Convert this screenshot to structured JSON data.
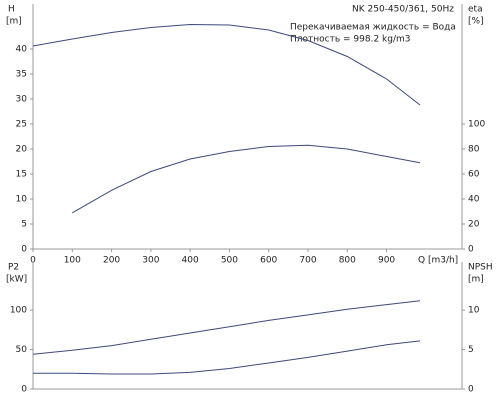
{
  "chart_data": [
    {
      "type": "line",
      "title": "NK 250-450/361, 50Hz",
      "annotations": [
        "Перекачиваемая жидкость = Вода",
        "Плотность = 998.2 kg/m3"
      ],
      "xlabel": "Q [m3/h]",
      "ylabel": "H",
      "yunit": "[m]",
      "y2label": "eta",
      "y2unit": "[%]",
      "x": [
        0,
        100,
        200,
        300,
        400,
        500,
        600,
        700,
        800,
        900,
        985
      ],
      "xlim": [
        0,
        1092
      ],
      "xticks": [
        0,
        100,
        200,
        300,
        400,
        500,
        600,
        700,
        800,
        900
      ],
      "ylim": [
        0,
        49
      ],
      "yticks": [
        0,
        5,
        10,
        15,
        20,
        25,
        30,
        35,
        40
      ],
      "y2lim": [
        0,
        196
      ],
      "y2ticks": [
        0,
        20,
        40,
        60,
        80,
        100
      ],
      "series": [
        {
          "name": "H",
          "color": "#3d4a7c",
          "values": [
            40.6,
            42,
            43.3,
            44.3,
            44.9,
            44.8,
            43.8,
            41.7,
            38.5,
            34,
            28.8
          ]
        },
        {
          "name": "eta",
          "color": "#3d4a7c",
          "axis": "y2",
          "values": [
            null,
            29,
            47,
            62,
            72,
            78,
            82,
            83,
            80,
            74,
            69
          ]
        }
      ]
    },
    {
      "type": "line",
      "ylabel": "P2",
      "yunit": "[kW]",
      "y2label": "NPSH",
      "y2unit": "[m]",
      "x": [
        0,
        100,
        200,
        300,
        400,
        500,
        600,
        700,
        800,
        900,
        985
      ],
      "xlim": [
        0,
        1092
      ],
      "ylim": [
        0,
        161
      ],
      "yticks": [
        0,
        50,
        100
      ],
      "y2lim": [
        0,
        16.1
      ],
      "y2ticks": [
        0,
        5,
        10
      ],
      "series": [
        {
          "name": "P2",
          "color": "#3d4a7c",
          "values": [
            44,
            49,
            55,
            63,
            71,
            79,
            87,
            94,
            101,
            107,
            112
          ]
        },
        {
          "name": "NPSH",
          "color": "#3d4a7c",
          "axis": "y2",
          "values": [
            2.0,
            2.0,
            1.9,
            1.9,
            2.1,
            2.6,
            3.3,
            4.0,
            4.8,
            5.6,
            6.1
          ]
        }
      ]
    }
  ]
}
